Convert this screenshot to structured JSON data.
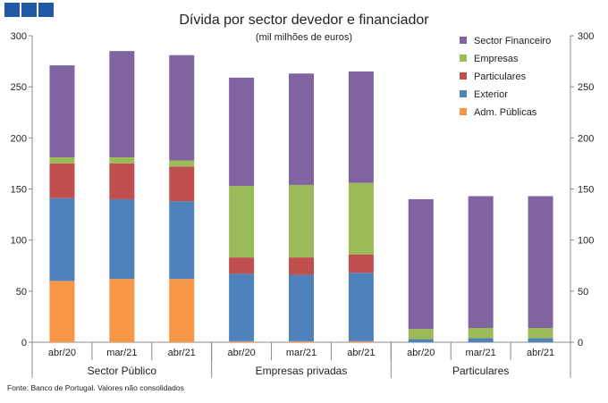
{
  "header_squares": 3,
  "source_note": "Fonte: Banco de Portugal. Valores não consolidados",
  "chart_data": {
    "type": "bar",
    "stacked": true,
    "title": "Dívida por sector devedor e financiador",
    "subtitle": "(mil milhões de euros)",
    "categories": [
      "abr/20",
      "mar/21",
      "abr/21",
      "abr/20",
      "mar/21",
      "abr/21",
      "abr/20",
      "mar/21",
      "abr/21"
    ],
    "groups": [
      {
        "name": "Sector Público",
        "count": 3
      },
      {
        "name": "Empresas privadas",
        "count": 3
      },
      {
        "name": "Particulares",
        "count": 3
      }
    ],
    "ylim": [
      0,
      300
    ],
    "yticks": [
      0,
      50,
      100,
      150,
      200,
      250,
      300
    ],
    "secondary_axis": true,
    "grid": false,
    "legend_position": "top-right",
    "series": [
      {
        "name": "Adm. Públicas",
        "color": "#F79646",
        "values": [
          60,
          62,
          62,
          1,
          1,
          1,
          0,
          0,
          0
        ]
      },
      {
        "name": "Exterior",
        "color": "#4F81BD",
        "values": [
          81,
          78,
          76,
          66,
          65,
          67,
          3,
          4,
          4
        ]
      },
      {
        "name": "Particulares",
        "color": "#C0504D",
        "values": [
          34,
          35,
          34,
          16,
          17,
          18,
          0,
          0,
          0
        ]
      },
      {
        "name": "Empresas",
        "color": "#9BBB59",
        "values": [
          6,
          6,
          6,
          70,
          71,
          70,
          10,
          10,
          10
        ]
      },
      {
        "name": "Sector Financeiro",
        "color": "#8064A2",
        "values": [
          90,
          104,
          103,
          106,
          109,
          109,
          127,
          129,
          129
        ]
      }
    ]
  }
}
